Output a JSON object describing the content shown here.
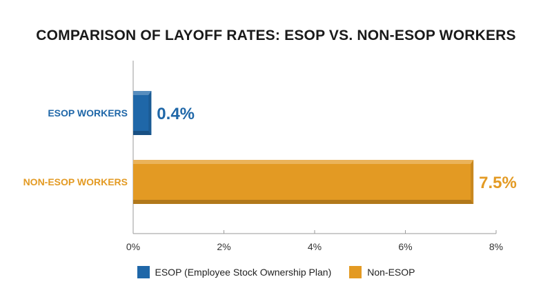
{
  "chart_data": {
    "type": "bar",
    "orientation": "horizontal",
    "title": "COMPARISON OF LAYOFF RATES: ESOP VS. NON-ESOP WORKERS",
    "categories": [
      "ESOP WORKERS",
      "NON-ESOP WORKERS"
    ],
    "values": [
      0.4,
      7.5
    ],
    "value_labels": [
      "0.4%",
      "7.5%"
    ],
    "unit": "%",
    "xlim": [
      0,
      8
    ],
    "xticks": [
      0,
      2,
      4,
      6,
      8
    ],
    "xtick_labels": [
      "0%",
      "2%",
      "4%",
      "6%",
      "8%"
    ],
    "grid": false,
    "legend_position": "bottom",
    "legend": [
      {
        "label": "ESOP (Employee Stock Ownership Plan)",
        "color": "#1f67a8"
      },
      {
        "label": "Non-ESOP",
        "color": "#e39a23"
      }
    ],
    "colors": [
      "#1f67a8",
      "#e39a23"
    ]
  }
}
